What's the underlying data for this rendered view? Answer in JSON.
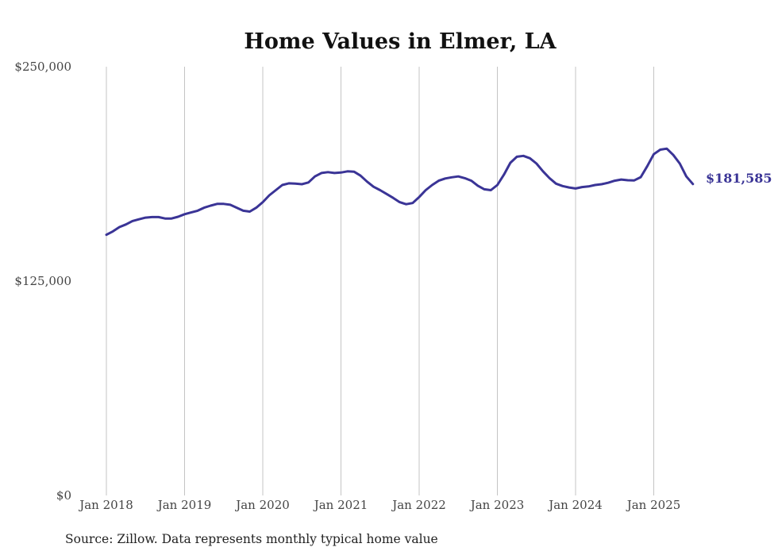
{
  "chart_data": {
    "type": "line",
    "title": "Home Values in Elmer, LA",
    "source": "Source: Zillow. Data represents monthly typical home value",
    "y_ticks": [
      "$0",
      "$125,000",
      "$250,000"
    ],
    "y_tick_values": [
      0,
      125000,
      250000
    ],
    "ylim": [
      0,
      250000
    ],
    "x_ticks": [
      "Jan 2018",
      "Jan 2019",
      "Jan 2020",
      "Jan 2021",
      "Jan 2022",
      "Jan 2023",
      "Jan 2024",
      "Jan 2025"
    ],
    "grid": "vertical",
    "line_color": "#3a3496",
    "end_label": "$181,585",
    "series": [
      {
        "x": [
          "2018-01",
          "2018-02",
          "2018-03",
          "2018-04",
          "2018-05",
          "2018-06",
          "2018-07",
          "2018-08",
          "2018-09",
          "2018-10",
          "2018-11",
          "2018-12",
          "2019-01",
          "2019-02",
          "2019-03",
          "2019-04",
          "2019-05",
          "2019-06",
          "2019-07",
          "2019-08",
          "2019-09",
          "2019-10",
          "2019-11",
          "2019-12",
          "2020-01",
          "2020-02",
          "2020-03",
          "2020-04",
          "2020-05",
          "2020-06",
          "2020-07",
          "2020-08",
          "2020-09",
          "2020-10",
          "2020-11",
          "2020-12",
          "2021-01",
          "2021-02",
          "2021-03",
          "2021-04",
          "2021-05",
          "2021-06",
          "2021-07",
          "2021-08",
          "2021-09",
          "2021-10",
          "2021-11",
          "2021-12",
          "2022-01",
          "2022-02",
          "2022-03",
          "2022-04",
          "2022-05",
          "2022-06",
          "2022-07",
          "2022-08",
          "2022-09",
          "2022-10",
          "2022-11",
          "2022-12",
          "2023-01",
          "2023-02",
          "2023-03",
          "2023-04",
          "2023-05",
          "2023-06",
          "2023-07",
          "2023-08",
          "2023-09",
          "2023-10",
          "2023-11",
          "2023-12",
          "2024-01",
          "2024-02",
          "2024-03",
          "2024-04",
          "2024-05",
          "2024-06",
          "2024-07",
          "2024-08",
          "2024-09",
          "2024-10",
          "2024-11",
          "2024-12",
          "2025-01",
          "2025-02",
          "2025-03",
          "2025-04",
          "2025-05",
          "2025-06",
          "2025-07"
        ],
        "values": [
          152000,
          154000,
          156500,
          158000,
          160000,
          161000,
          162000,
          162300,
          162300,
          161500,
          161500,
          162500,
          164000,
          165000,
          166000,
          167800,
          169000,
          170000,
          170000,
          169500,
          167800,
          166000,
          165500,
          167800,
          171000,
          175000,
          178000,
          181000,
          182000,
          181800,
          181500,
          182500,
          186000,
          188000,
          188500,
          188000,
          188300,
          189000,
          188800,
          186500,
          183000,
          180000,
          178000,
          175800,
          173500,
          171000,
          169800,
          170500,
          174000,
          178000,
          181000,
          183500,
          184800,
          185500,
          186000,
          185000,
          183500,
          180600,
          178500,
          178000,
          181000,
          187000,
          194000,
          197500,
          198000,
          196600,
          193500,
          189000,
          185000,
          181800,
          180400,
          179600,
          179000,
          179800,
          180200,
          181000,
          181500,
          182300,
          183500,
          184200,
          183800,
          183700,
          185600,
          192000,
          199000,
          201600,
          202200,
          198500,
          193500,
          186000,
          181585
        ]
      }
    ]
  }
}
